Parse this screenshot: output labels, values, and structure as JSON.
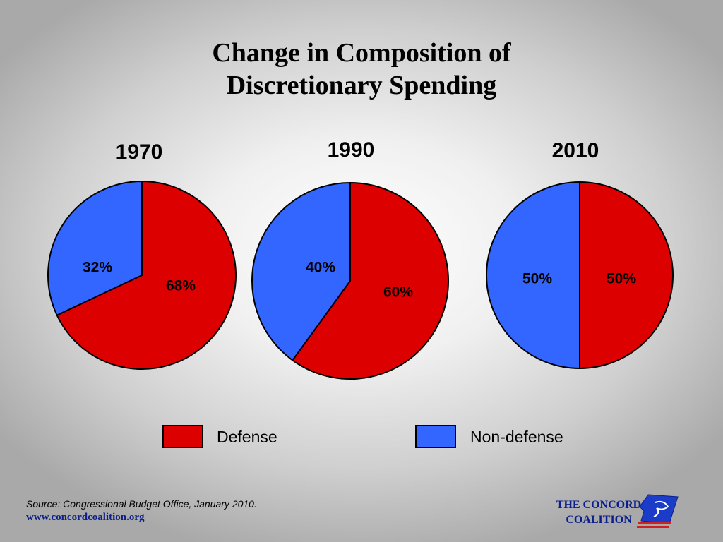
{
  "title_line1": "Change in Composition of",
  "title_line2": "Discretionary Spending",
  "colors": {
    "defense": "#dd0000",
    "non_defense": "#3366ff"
  },
  "legend": [
    {
      "label": "Defense",
      "color": "#dd0000"
    },
    {
      "label": "Non-defense",
      "color": "#3366ff"
    }
  ],
  "chart_data": [
    {
      "type": "pie",
      "title": "1970",
      "slices": [
        {
          "name": "Defense",
          "value": 68,
          "label": "68%"
        },
        {
          "name": "Non-defense",
          "value": 32,
          "label": "32%"
        }
      ]
    },
    {
      "type": "pie",
      "title": "1990",
      "slices": [
        {
          "name": "Defense",
          "value": 60,
          "label": "60%"
        },
        {
          "name": "Non-defense",
          "value": 40,
          "label": "40%"
        }
      ]
    },
    {
      "type": "pie",
      "title": "2010",
      "slices": [
        {
          "name": "Defense",
          "value": 50,
          "label": "50%"
        },
        {
          "name": "Non-defense",
          "value": 50,
          "label": "50%"
        }
      ]
    }
  ],
  "footer": {
    "source": "Source: Congressional Budget Office, January 2010.",
    "url": "www.concordcoalition.org",
    "logo_line1": "THE CONCORD",
    "logo_line2": "COALITION"
  }
}
